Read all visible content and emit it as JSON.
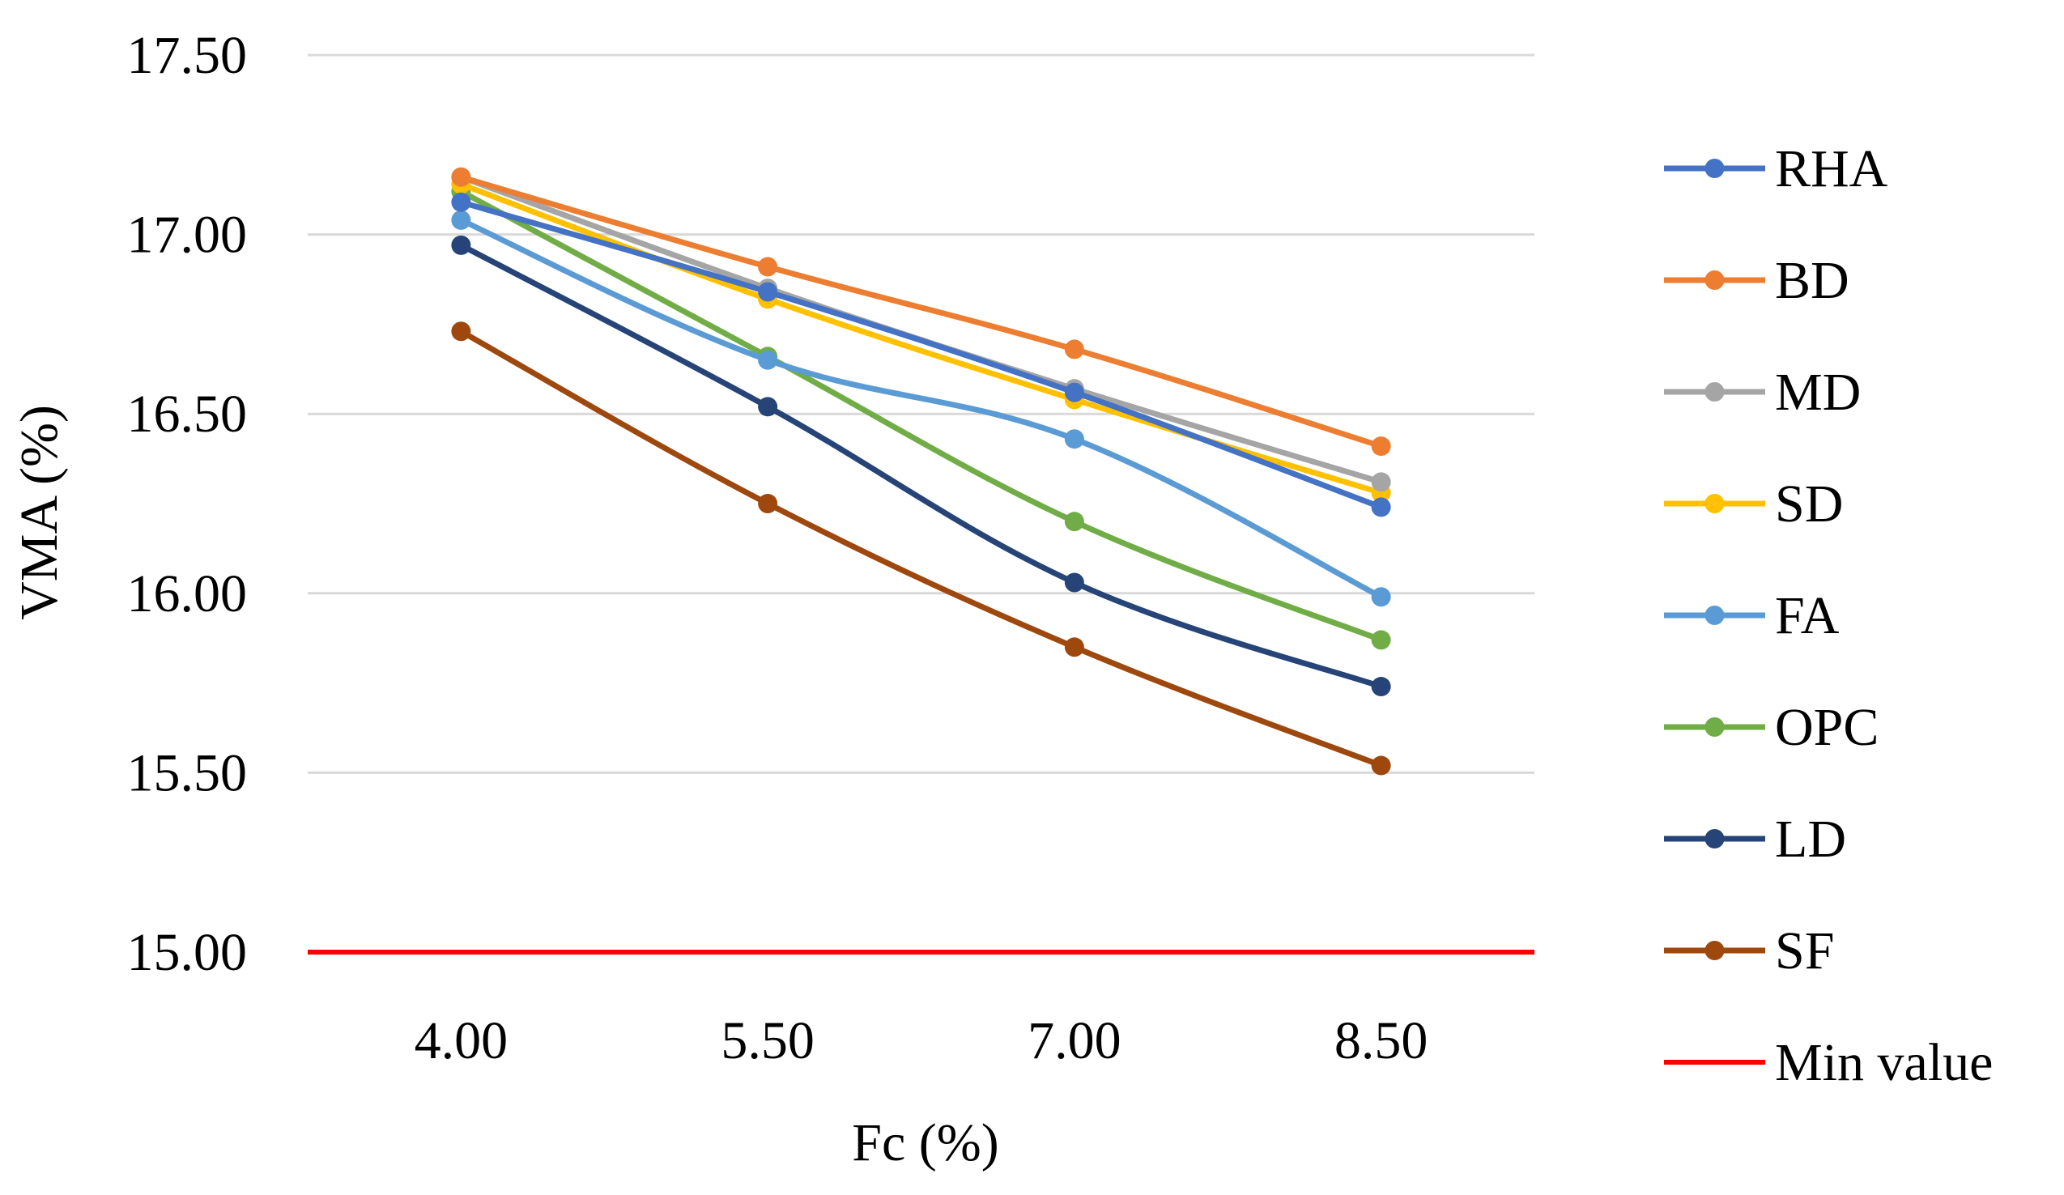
{
  "chart_data": {
    "type": "line",
    "title": "",
    "xlabel": "Fc (%)",
    "ylabel": "VMA (%)",
    "categories": [
      "4.00",
      "5.50",
      "7.00",
      "8.50"
    ],
    "ylim": [
      15.0,
      17.5
    ],
    "yticks": [
      "15.00",
      "15.50",
      "16.00",
      "16.50",
      "17.00",
      "17.50"
    ],
    "grid": true,
    "legend_position": "right",
    "series": [
      {
        "name": "RHA",
        "color": "#4472C4",
        "values": [
          17.09,
          16.84,
          16.56,
          16.24
        ]
      },
      {
        "name": "BD",
        "color": "#ED7D31",
        "values": [
          17.16,
          16.91,
          16.68,
          16.41
        ]
      },
      {
        "name": "MD",
        "color": "#A5A5A5",
        "values": [
          17.16,
          16.85,
          16.57,
          16.31
        ]
      },
      {
        "name": "SD",
        "color": "#FFC000",
        "values": [
          17.14,
          16.82,
          16.54,
          16.28
        ]
      },
      {
        "name": "FA",
        "color": "#5B9BD5",
        "values": [
          17.04,
          16.65,
          16.43,
          15.99
        ]
      },
      {
        "name": "OPC",
        "color": "#70AD47",
        "values": [
          17.12,
          16.66,
          16.2,
          15.87
        ]
      },
      {
        "name": "LD",
        "color": "#264478",
        "values": [
          16.97,
          16.52,
          16.03,
          15.74
        ]
      },
      {
        "name": "SF",
        "color": "#9E480E",
        "values": [
          16.73,
          16.25,
          15.85,
          15.52
        ]
      }
    ],
    "reference_line": {
      "name": "Min value",
      "value": 15.0,
      "color": "#FF0000"
    },
    "gridline_color": "#D9D9D9"
  }
}
